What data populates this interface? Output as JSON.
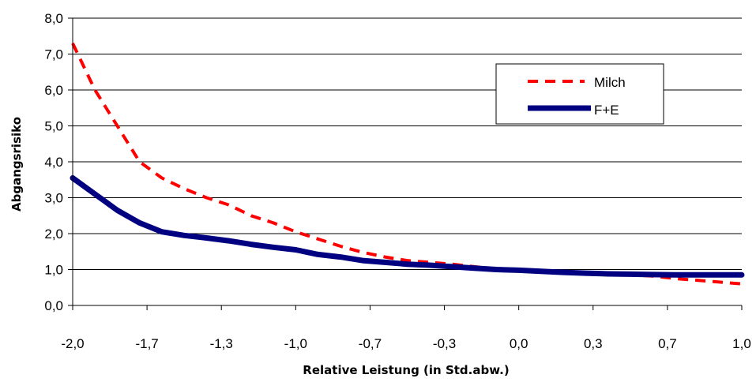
{
  "chart_data": {
    "type": "line",
    "xlabel": "Relative Leistung (in Std.abw.)",
    "ylabel": "Abgangsrisiko",
    "xlim": [
      -2.0,
      1.0
    ],
    "ylim": [
      0.0,
      8.0
    ],
    "x_tick_labels": [
      "-2,0",
      "-1,7",
      "-1,3",
      "-1,0",
      "-0,7",
      "-0,3",
      "0,0",
      "0,3",
      "0,7",
      "1,0"
    ],
    "y_tick_labels": [
      "0,0",
      "1,0",
      "2,0",
      "3,0",
      "4,0",
      "5,0",
      "6,0",
      "7,0",
      "8,0"
    ],
    "grid": true,
    "legend_position": "top-right",
    "series": [
      {
        "name": "Milch",
        "style": "dashed",
        "color": "#ff0000",
        "x": [
          -2.0,
          -1.9,
          -1.8,
          -1.7,
          -1.6,
          -1.5,
          -1.4,
          -1.3,
          -1.2,
          -1.1,
          -1.0,
          -0.9,
          -0.8,
          -0.7,
          -0.6,
          -0.5,
          -0.4,
          -0.3,
          -0.2,
          -0.1,
          0.0,
          0.1,
          0.2,
          0.3,
          0.4,
          0.5,
          0.6,
          0.7,
          0.8,
          0.9,
          1.0
        ],
        "values": [
          7.3,
          6.0,
          5.0,
          4.0,
          3.55,
          3.25,
          3.0,
          2.8,
          2.5,
          2.3,
          2.05,
          1.85,
          1.65,
          1.48,
          1.35,
          1.25,
          1.2,
          1.15,
          1.08,
          1.02,
          1.0,
          0.97,
          0.93,
          0.9,
          0.88,
          0.85,
          0.82,
          0.75,
          0.7,
          0.65,
          0.6
        ]
      },
      {
        "name": "F+E",
        "style": "solid",
        "color": "#000080",
        "x": [
          -2.0,
          -1.9,
          -1.8,
          -1.7,
          -1.6,
          -1.5,
          -1.4,
          -1.3,
          -1.2,
          -1.1,
          -1.0,
          -0.9,
          -0.8,
          -0.7,
          -0.6,
          -0.5,
          -0.4,
          -0.3,
          -0.2,
          -0.1,
          0.0,
          0.1,
          0.2,
          0.3,
          0.4,
          0.5,
          0.6,
          0.7,
          0.8,
          0.9,
          1.0
        ],
        "values": [
          3.55,
          3.1,
          2.65,
          2.3,
          2.05,
          1.95,
          1.88,
          1.8,
          1.7,
          1.62,
          1.55,
          1.42,
          1.35,
          1.25,
          1.2,
          1.15,
          1.12,
          1.08,
          1.04,
          1.0,
          0.98,
          0.95,
          0.92,
          0.9,
          0.88,
          0.87,
          0.86,
          0.85,
          0.85,
          0.85,
          0.85
        ]
      }
    ]
  }
}
